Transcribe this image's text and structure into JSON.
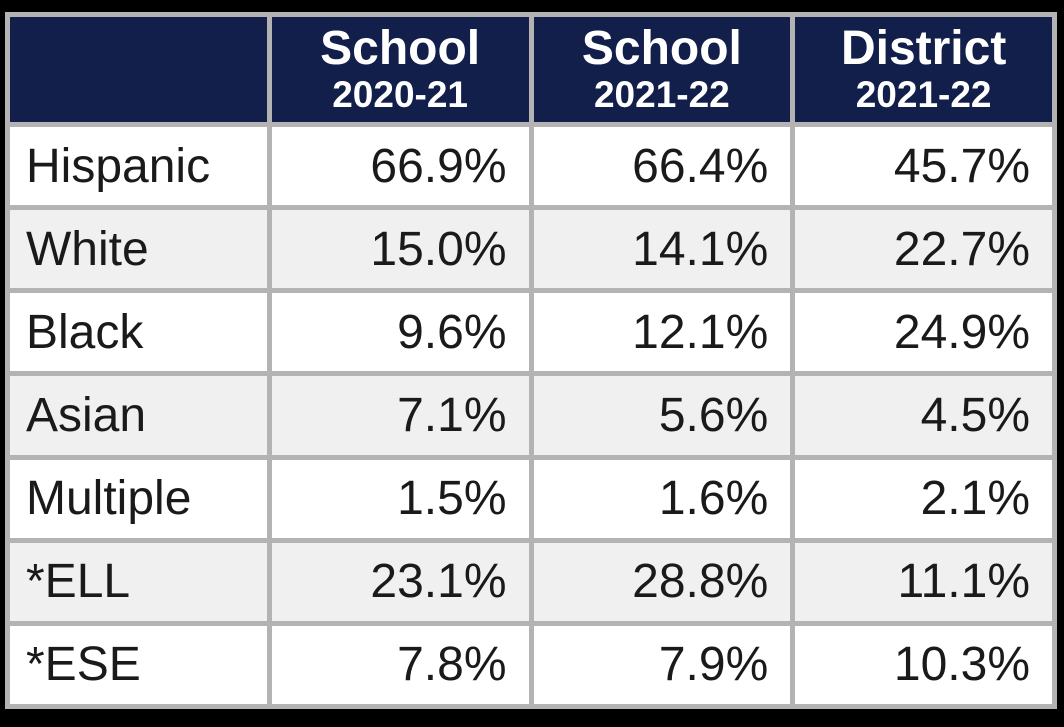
{
  "table": {
    "columns": [
      {
        "title": "",
        "subtitle": ""
      },
      {
        "title": "School",
        "subtitle": "2020-21"
      },
      {
        "title": "School",
        "subtitle": "2021-22"
      },
      {
        "title": "District",
        "subtitle": "2021-22"
      }
    ],
    "rows": [
      {
        "label": "Hispanic",
        "values": [
          "66.9%",
          "66.4%",
          "45.7%"
        ]
      },
      {
        "label": "White",
        "values": [
          "15.0%",
          "14.1%",
          "22.7%"
        ]
      },
      {
        "label": "Black",
        "values": [
          "9.6%",
          "12.1%",
          "24.9%"
        ]
      },
      {
        "label": "Asian",
        "values": [
          "7.1%",
          "5.6%",
          "4.5%"
        ]
      },
      {
        "label": "Multiple",
        "values": [
          "1.5%",
          "1.6%",
          "2.1%"
        ]
      },
      {
        "label": "*ELL",
        "values": [
          "23.1%",
          "28.8%",
          "11.1%"
        ]
      },
      {
        "label": "*ESE",
        "values": [
          "7.8%",
          "7.9%",
          "10.3%"
        ]
      }
    ]
  },
  "chart_data": {
    "type": "table",
    "columns": [
      "",
      "School 2020-21",
      "School 2021-22",
      "District 2021-22"
    ],
    "rows": [
      [
        "Hispanic",
        "66.9%",
        "66.4%",
        "45.7%"
      ],
      [
        "White",
        "15.0%",
        "14.1%",
        "22.7%"
      ],
      [
        "Black",
        "9.6%",
        "12.1%",
        "24.9%"
      ],
      [
        "Asian",
        "7.1%",
        "5.6%",
        "4.5%"
      ],
      [
        "Multiple",
        "1.5%",
        "1.6%",
        "2.1%"
      ],
      [
        "*ELL",
        "23.1%",
        "28.8%",
        "11.1%"
      ],
      [
        "*ESE",
        "7.8%",
        "7.9%",
        "10.3%"
      ]
    ]
  },
  "colors": {
    "frame": "#000000",
    "border": "#b3b3b3",
    "header_bg": "#121f4b",
    "header_text": "#ffffff",
    "row_bg": "#ffffff",
    "row_alt_bg": "#f0f0f0",
    "text": "#1a1a1a"
  }
}
